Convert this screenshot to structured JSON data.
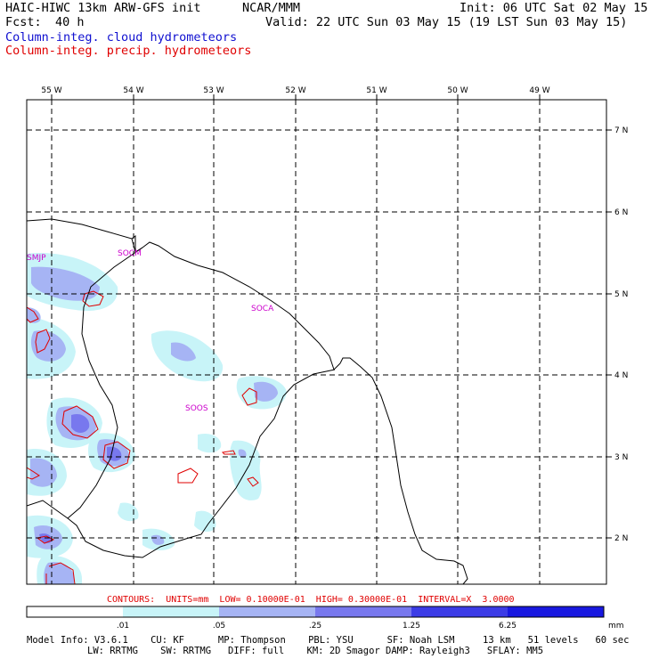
{
  "header": {
    "model_title": "HAIC-HIWC 13km ARW-GFS init",
    "org": "NCAR/MMM",
    "init": "Init: 06 UTC Sat 02 May 15",
    "fcst_label": "Fcst:",
    "fcst_value": "40 h",
    "valid": "Valid: 22 UTC Sun 03 May 15 (19 LST Sun 03 May 15)",
    "field1": "Column-integ. cloud hydrometeors",
    "field2": "Column-integ. precip. hydrometeors"
  },
  "map": {
    "lon_labels": [
      "55 W",
      "54 W",
      "53 W",
      "52 W",
      "51 W",
      "50 W",
      "49 W"
    ],
    "lat_labels": [
      "7 N",
      "6 N",
      "5 N",
      "4 N",
      "3 N",
      "2 N"
    ],
    "sites": [
      "SMJP",
      "SOCM",
      "SOCA",
      "SOOS"
    ]
  },
  "contours_line": "CONTOURS:  UNITS=mm  LOW= 0.10000E-01  HIGH= 0.30000E-01  INTERVAL=X  3.0000",
  "colorbar": {
    "ticks": [
      ".01",
      ".05",
      ".25",
      "1.25",
      "6.25"
    ],
    "unit": "mm",
    "colors": [
      "#ffffff",
      "#c8f4f8",
      "#a6b4f4",
      "#7878ee",
      "#3c3ce6",
      "#1818e0"
    ]
  },
  "model_info": {
    "line1": "Model Info: V3.6.1    CU: KF      MP: Thompson    PBL: YSU      SF: Noah LSM     13 km   51 levels   60 sec",
    "line2": "LW: RRTMG    SW: RRTMG   DIFF: full    KM: 2D Smagor DAMP: Rayleigh3   SFLAY: MM5"
  }
}
